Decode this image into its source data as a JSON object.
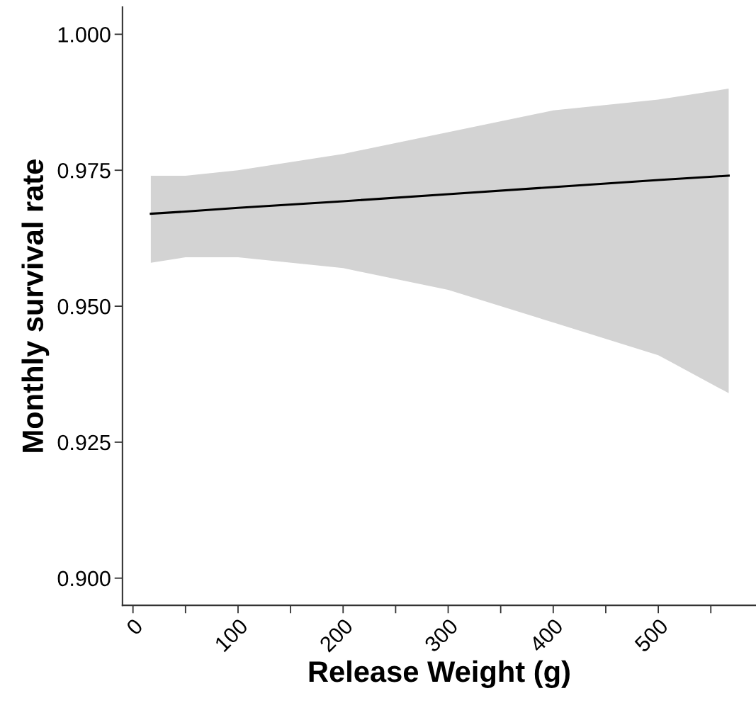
{
  "chart_data": {
    "type": "line",
    "xlabel": "Release Weight (g)",
    "ylabel": "Monthly survival rate",
    "series": [
      {
        "color": "#000000",
        "x": [
          17,
          50,
          100,
          200,
          300,
          400,
          500,
          567
        ],
        "values": [
          0.967,
          0.9674,
          0.9681,
          0.9693,
          0.9706,
          0.9719,
          0.9732,
          0.974
        ],
        "lower": [
          0.958,
          0.959,
          0.959,
          0.957,
          0.953,
          0.947,
          0.941,
          0.934
        ],
        "upper": [
          0.974,
          0.974,
          0.975,
          0.978,
          0.982,
          0.986,
          0.988,
          0.99
        ]
      }
    ],
    "xlim": [
      -10,
      593
    ],
    "xticks": [
      0,
      {
        "value": 50,
        "label": null
      },
      100,
      {
        "value": 150,
        "label": null
      },
      200,
      {
        "value": 250,
        "label": null
      },
      300,
      {
        "value": 350,
        "label": null
      },
      400,
      {
        "value": 450,
        "label": null
      },
      500,
      {
        "value": 550,
        "label": null
      }
    ],
    "ylim": [
      0.895,
      1.005
    ],
    "yticks": [
      {
        "value": 0.9,
        "label": "0.900"
      },
      {
        "value": 0.925,
        "label": "0.925"
      },
      {
        "value": 0.95,
        "label": "0.950"
      },
      {
        "value": 0.975,
        "label": "0.975"
      },
      {
        "value": 1.0,
        "label": "1.000"
      }
    ],
    "grid": false,
    "marker": "none",
    "line_style": "solid"
  }
}
